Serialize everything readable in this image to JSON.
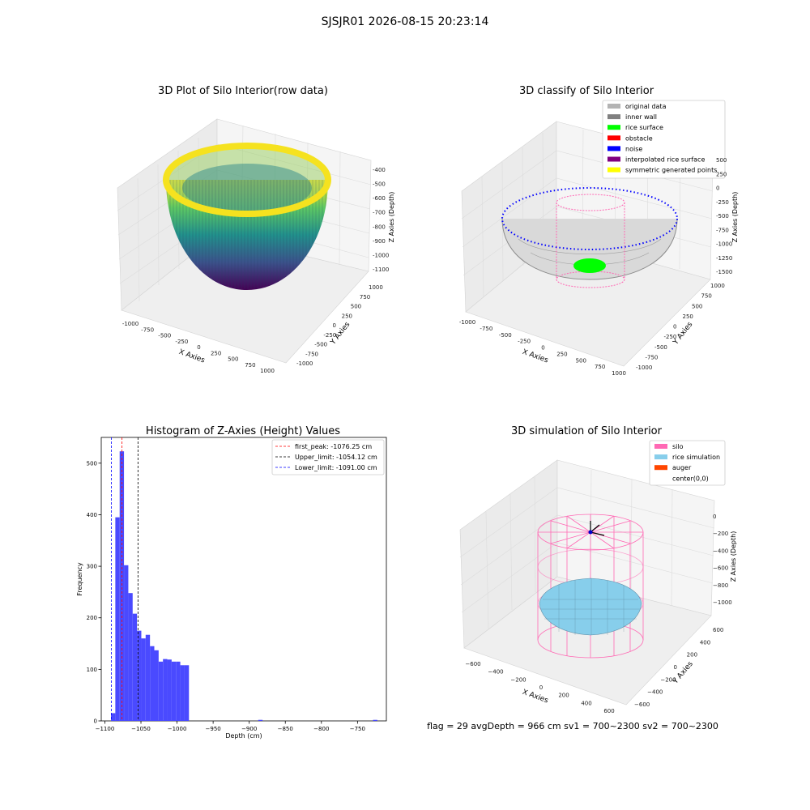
{
  "figure": {
    "suptitle": "SJSJR01 2026-08-15 20:23:14",
    "footer": "flag = 29  avgDepth = 966 cm  sv1 = 700~2300  sv2 = 700~2300"
  },
  "colors": {
    "histogram": "#4a4aff",
    "first_peak": "#ff0000",
    "upper_limit": "#000000",
    "lower_limit": "#0000ff",
    "original_data": "#b3b3b3",
    "inner_wall": "#808080",
    "rice_surface": "#00ff00",
    "obstacle": "#ff0000",
    "noise": "#0000ff",
    "interpolated_rice_surface": "#800080",
    "symmetric_generated_points": "#ffff00",
    "silo": "#ff69b4",
    "rice_simulation": "#87ceeb",
    "auger": "#ff4500",
    "pane_fill": "#f2f2f2"
  },
  "chart_data": [
    {
      "type": "scatter",
      "subtype": "3d",
      "title": "3D Plot of Silo Interior(row data)",
      "xlabel": "X Axies",
      "ylabel": "Y Axies",
      "zlabel": "Z Axies (Depth)",
      "xticks": [
        "-1000",
        "-750",
        "-500",
        "-250",
        "0",
        "250",
        "500",
        "750",
        "1000"
      ],
      "yticks": [
        "-1000",
        "-750",
        "-500",
        "-250",
        "0",
        "250",
        "500",
        "750",
        "1000"
      ],
      "zticks": [
        "-1100",
        "-1000",
        "-900",
        "-800",
        "-700",
        "-600",
        "-500",
        "-400"
      ],
      "colormap": "viridis",
      "shape": "paraboloid bowl",
      "zlim": [
        -1100,
        -400
      ]
    },
    {
      "type": "scatter",
      "subtype": "3d",
      "title": "3D classify of Silo Interior",
      "xlabel": "X Axies",
      "ylabel": "Y Axies",
      "zlabel": "Z Axies (Depth)",
      "xticks": [
        "-1000",
        "-750",
        "-500",
        "-250",
        "0",
        "250",
        "500",
        "750",
        "1000"
      ],
      "yticks": [
        "-1000",
        "-750",
        "-500",
        "-250",
        "0",
        "250",
        "500",
        "750",
        "1000"
      ],
      "zticks": [
        "-1500",
        "-1250",
        "-1000",
        "-750",
        "-500",
        "-250",
        "0",
        "250",
        "500"
      ],
      "legend_location": "top-right",
      "legend": [
        {
          "label": "original data",
          "color": "#b3b3b3"
        },
        {
          "label": "inner wall",
          "color": "#808080"
        },
        {
          "label": "rice surface",
          "color": "#00ff00"
        },
        {
          "label": "obstacle",
          "color": "#ff0000"
        },
        {
          "label": "noise",
          "color": "#0000ff"
        },
        {
          "label": "interpolated rice surface",
          "color": "#800080"
        },
        {
          "label": "symmetric generated points",
          "color": "#ffff00"
        }
      ]
    },
    {
      "type": "bar",
      "subtype": "histogram",
      "title": "Histogram of Z-Axies (Height) Values",
      "xlabel": "Depth (cm)",
      "ylabel": "Frequency",
      "xlim": [
        -1105,
        -710
      ],
      "ylim": [
        0,
        550
      ],
      "xticks": [
        -1100,
        -1050,
        -1000,
        -950,
        -900,
        -850,
        -800,
        -750
      ],
      "xtick_labels": [
        "−1100",
        "−1050",
        "−1000",
        "−950",
        "−900",
        "−850",
        "−800",
        "−750"
      ],
      "yticks": [
        0,
        100,
        200,
        300,
        400,
        500
      ],
      "bin_width": 6.0,
      "bin_starts": [
        -1091.5,
        -1085.5,
        -1079.5,
        -1073.5,
        -1067.5,
        -1061.5,
        -1055.5,
        -1049.5,
        -1043.5,
        -1037.5,
        -1031.5,
        -1025.5,
        -1019.5,
        -1013.5,
        -1007.5,
        -1001.5,
        -995.5,
        -989.5,
        -983.5,
        -977.5,
        -971.5,
        -887.5,
        -728.5
      ],
      "counts": [
        15,
        395,
        523,
        302,
        248,
        208,
        175,
        160,
        167,
        145,
        137,
        115,
        120,
        119,
        115,
        115,
        108,
        108,
        0,
        0,
        0,
        2,
        2
      ],
      "vlines": [
        {
          "x": -1076.25,
          "label": "first_peak: -1076.25 cm",
          "color": "#ff0000"
        },
        {
          "x": -1054.12,
          "label": "Upper_limit: -1054.12 cm",
          "color": "#000000"
        },
        {
          "x": -1091.0,
          "label": "Lower_limit: -1091.00 cm",
          "color": "#0000ff"
        }
      ],
      "legend_location": "top-right"
    },
    {
      "type": "scatter",
      "subtype": "3d",
      "title": "3D simulation of Silo Interior",
      "xlabel": "X Axies",
      "ylabel": "Y Axies",
      "zlabel": "Z Axies (Depth)",
      "xticks": [
        "−600",
        "−400",
        "−200",
        "0",
        "200",
        "400",
        "600"
      ],
      "yticks": [
        "−600",
        "−400",
        "−200",
        "0",
        "200",
        "400",
        "600"
      ],
      "zticks": [
        "−1000",
        "−800",
        "−600",
        "−400",
        "−200",
        "0"
      ],
      "legend_location": "top-right",
      "legend": [
        {
          "label": "silo",
          "color": "#ff69b4"
        },
        {
          "label": "rice simulation",
          "color": "#87ceeb"
        },
        {
          "label": "auger",
          "color": "#ff4500"
        },
        {
          "label": "center(0,0)",
          "color": ""
        }
      ]
    }
  ]
}
